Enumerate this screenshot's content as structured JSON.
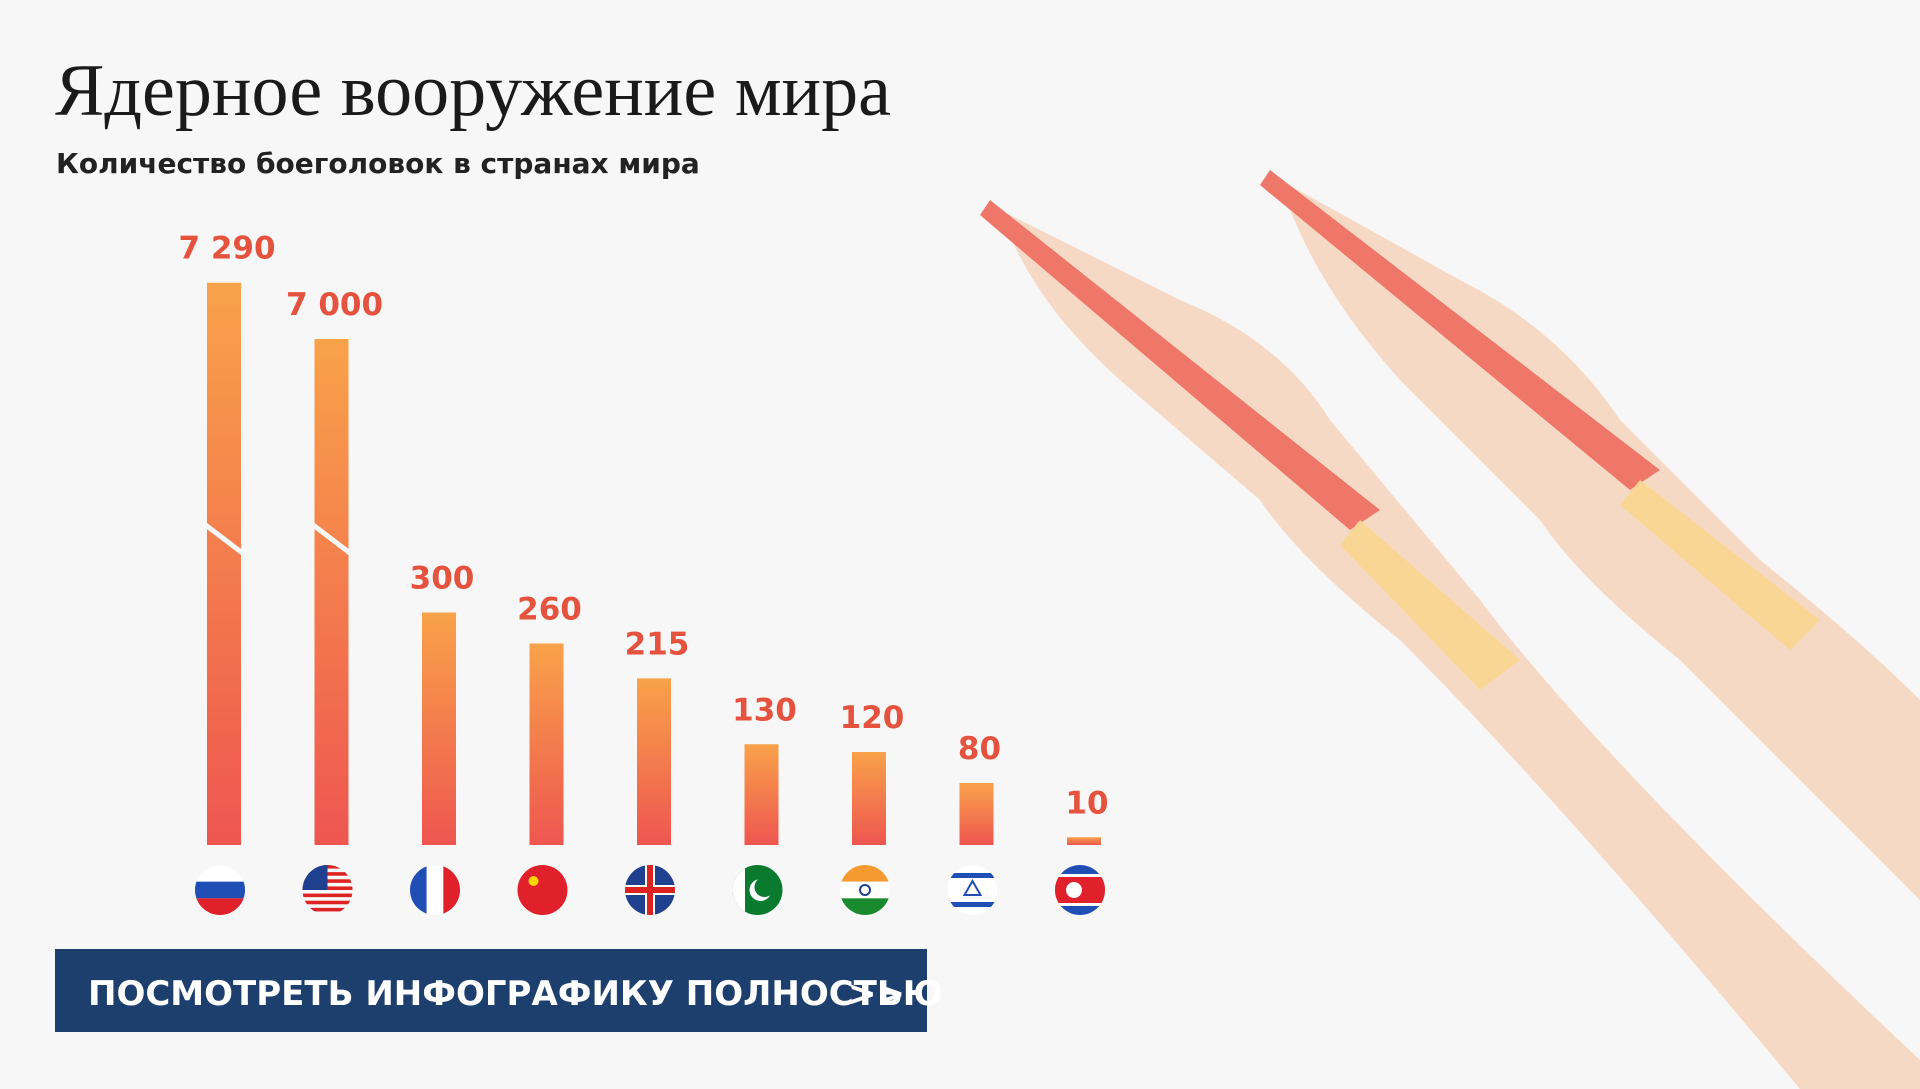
{
  "title": "Ядерное вооружение мира",
  "subtitle": "Количество боеголовок в странах мира",
  "chart_data": {
    "type": "bar",
    "categories": [
      null,
      null,
      null,
      null,
      null,
      null,
      null,
      null,
      null
    ],
    "values": [
      7290,
      7000,
      300,
      260,
      215,
      130,
      120,
      80,
      10
    ],
    "value_labels": [
      "7 290",
      "7 000",
      "300",
      "260",
      "215",
      "130",
      "120",
      "80",
      "10"
    ],
    "color": "#ef5b50"
  },
  "button": {
    "label": "ПОСМОТРЕТЬ ИНФОГРАФИКУ ПОЛНОСТЬЮ",
    "arrow": ">>"
  }
}
